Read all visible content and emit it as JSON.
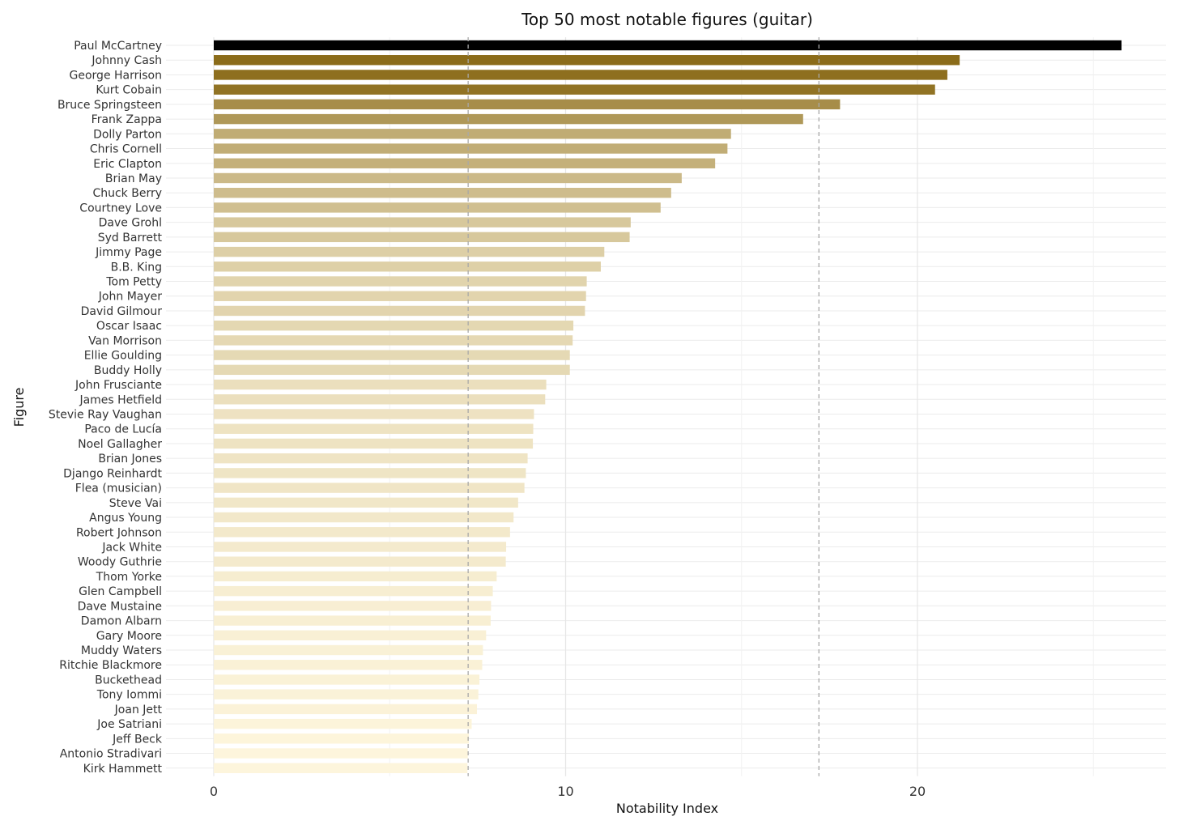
{
  "chart_data": {
    "type": "bar",
    "orientation": "horizontal",
    "title": "Top 50 most notable figures (guitar)",
    "xlabel": "Notability Index",
    "ylabel": "Figure",
    "xlim": [
      0,
      27.5
    ],
    "xticks": [
      0,
      10,
      20
    ],
    "grid": true,
    "reference_lines": [
      7.23,
      17.2
    ],
    "color_low": "#fdf5dc",
    "color_high": "#8b6c1a",
    "top_bar_color": "#000000",
    "categories": [
      "Paul McCartney",
      "Johnny Cash",
      "George Harrison",
      "Kurt Cobain",
      "Bruce Springsteen",
      "Frank Zappa",
      "Dolly Parton",
      "Chris Cornell",
      "Eric Clapton",
      "Brian May",
      "Chuck Berry",
      "Courtney Love",
      "Dave Grohl",
      "Syd Barrett",
      "Jimmy Page",
      "B.B. King",
      "Tom Petty",
      "John Mayer",
      "David Gilmour",
      "Oscar Isaac",
      "Van Morrison",
      "Ellie Goulding",
      "Buddy Holly",
      "John Frusciante",
      "James Hetfield",
      "Stevie Ray Vaughan",
      "Paco de Lucía",
      "Noel Gallagher",
      "Brian Jones",
      "Django Reinhardt",
      "Flea (musician)",
      "Steve Vai",
      "Angus Young",
      "Robert Johnson",
      "Jack White",
      "Woody Guthrie",
      "Thom Yorke",
      "Glen Campbell",
      "Dave Mustaine",
      "Damon Albarn",
      "Gary Moore",
      "Muddy Waters",
      "Ritchie Blackmore",
      "Buckethead",
      "Tony Iommi",
      "Joan Jett",
      "Joe Satriani",
      "Jeff Beck",
      "Antonio Stradivari",
      "Kirk Hammett"
    ],
    "values": [
      25.8,
      21.2,
      20.85,
      20.5,
      17.8,
      16.75,
      14.7,
      14.6,
      14.25,
      13.3,
      13.0,
      12.7,
      11.85,
      11.82,
      11.1,
      11.0,
      10.6,
      10.58,
      10.55,
      10.22,
      10.2,
      10.12,
      10.12,
      9.45,
      9.42,
      9.1,
      9.08,
      9.07,
      8.92,
      8.87,
      8.83,
      8.65,
      8.52,
      8.42,
      8.31,
      8.3,
      8.04,
      7.93,
      7.88,
      7.87,
      7.74,
      7.65,
      7.63,
      7.55,
      7.52,
      7.48,
      7.33,
      7.25,
      7.22,
      7.21
    ]
  }
}
